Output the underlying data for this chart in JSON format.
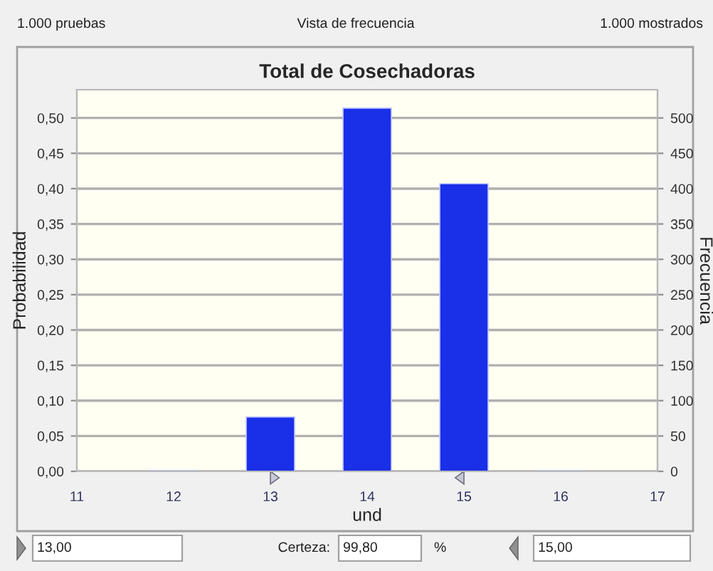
{
  "chart_data": {
    "type": "bar",
    "title": "Total de Cosechadoras",
    "xlabel": "und",
    "ylabel": "Probabilidad",
    "y2label": "Frecuencia",
    "x": [
      12,
      13,
      14,
      15,
      16
    ],
    "values": [
      0.001,
      0.077,
      0.514,
      0.407,
      0.001
    ],
    "colors": [
      "#d08070",
      "#1a2fe8",
      "#1a2fe8",
      "#1a2fe8",
      "#d08070"
    ],
    "xlim": [
      11,
      17
    ],
    "xticks": [
      11,
      12,
      13,
      14,
      15,
      16,
      17
    ],
    "ylim": [
      0,
      0.54
    ],
    "yticks": [
      {
        "value": 0,
        "label": "0,00"
      },
      {
        "value": 0.05,
        "label": "0,05"
      },
      {
        "value": 0.1,
        "label": "0,10"
      },
      {
        "value": 0.15,
        "label": "0,15"
      },
      {
        "value": 0.2,
        "label": "0,20"
      },
      {
        "value": 0.25,
        "label": "0,25"
      },
      {
        "value": 0.3,
        "label": "0,30"
      },
      {
        "value": 0.35,
        "label": "0,35"
      },
      {
        "value": 0.4,
        "label": "0,40"
      },
      {
        "value": 0.45,
        "label": "0,45"
      },
      {
        "value": 0.5,
        "label": "0,50"
      }
    ],
    "y2lim": [
      0,
      540
    ],
    "y2ticks": [
      0,
      50,
      100,
      150,
      200,
      250,
      300,
      350,
      400,
      450,
      500
    ],
    "grid": "y",
    "legend": false,
    "annotations": [
      "1.000 pruebas",
      "Vista de frecuencia",
      "1.000 mostrados",
      "13,00",
      "Certeza:",
      "99,80",
      "%",
      "15,00"
    ]
  }
}
